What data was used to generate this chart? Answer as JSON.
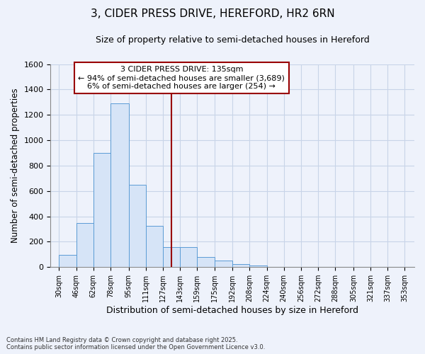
{
  "title1": "3, CIDER PRESS DRIVE, HEREFORD, HR2 6RN",
  "title2": "Size of property relative to semi-detached houses in Hereford",
  "xlabel": "Distribution of semi-detached houses by size in Hereford",
  "ylabel": "Number of semi-detached properties",
  "annotation_title": "3 CIDER PRESS DRIVE: 135sqm",
  "annotation_line1": "← 94% of semi-detached houses are smaller (3,689)",
  "annotation_line2": "6% of semi-detached houses are larger (254) →",
  "footnote1": "Contains HM Land Registry data © Crown copyright and database right 2025.",
  "footnote2": "Contains public sector information licensed under the Open Government Licence v3.0.",
  "bin_edges": [
    30,
    46,
    62,
    78,
    95,
    111,
    127,
    143,
    159,
    175,
    192,
    208,
    224,
    240,
    256,
    272,
    288,
    305,
    321,
    337,
    353
  ],
  "bar_heights": [
    95,
    350,
    900,
    1290,
    650,
    325,
    160,
    160,
    80,
    50,
    25,
    15,
    0,
    0,
    0,
    0,
    0,
    0,
    0,
    0
  ],
  "property_size": 135,
  "bar_fill_color": "#d6e4f7",
  "bar_edge_color": "#5b9bd5",
  "vline_color": "#990000",
  "box_edge_color": "#990000",
  "bg_color": "#eef2fb",
  "grid_color": "#c8d4e8",
  "ylim_max": 1600,
  "yticks": [
    0,
    200,
    400,
    600,
    800,
    1000,
    1200,
    1400,
    1600
  ]
}
